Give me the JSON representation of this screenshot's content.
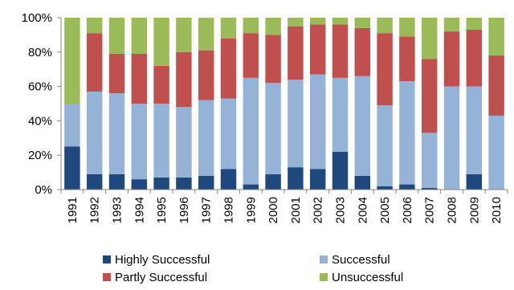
{
  "chart_data": {
    "type": "bar",
    "stacked": true,
    "categories": [
      "1991",
      "1992",
      "1993",
      "1994",
      "1995",
      "1996",
      "1997",
      "1998",
      "1999",
      "2000",
      "2001",
      "2002",
      "2003",
      "2004",
      "2005",
      "2006",
      "2007",
      "2008",
      "2009",
      "2010"
    ],
    "series": [
      {
        "name": "Highly Successful",
        "color": "#1f497d",
        "values": [
          25,
          9,
          9,
          6,
          7,
          7,
          8,
          12,
          3,
          9,
          13,
          12,
          22,
          8,
          2,
          3,
          1,
          0,
          9,
          0
        ]
      },
      {
        "name": "Successful",
        "color": "#95b3d7",
        "values": [
          25,
          48,
          47,
          44,
          43,
          41,
          44,
          41,
          62,
          53,
          51,
          55,
          43,
          58,
          47,
          60,
          32,
          60,
          51,
          43
        ]
      },
      {
        "name": "Partly Successful",
        "color": "#c0504d",
        "values": [
          0,
          34,
          23,
          29,
          22,
          32,
          29,
          35,
          26,
          28,
          31,
          29,
          31,
          28,
          42,
          26,
          43,
          32,
          33,
          35
        ]
      },
      {
        "name": "Unsuccessful",
        "color": "#9bbb59",
        "values": [
          50,
          9,
          21,
          21,
          28,
          20,
          19,
          12,
          9,
          10,
          5,
          4,
          4,
          6,
          9,
          11,
          24,
          8,
          7,
          22
        ]
      }
    ],
    "y_ticks": [
      "0%",
      "20%",
      "40%",
      "60%",
      "80%",
      "100%"
    ],
    "ylim": [
      0,
      100
    ],
    "y_unit": "percent",
    "grid": false,
    "legend_position": "bottom",
    "title": "",
    "xlabel": "",
    "ylabel": ""
  }
}
